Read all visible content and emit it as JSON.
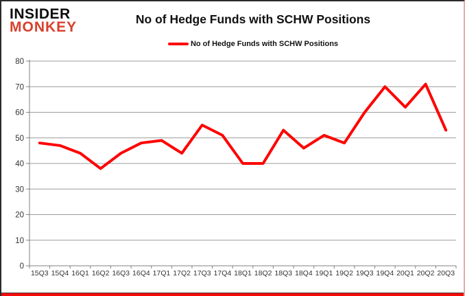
{
  "logo": {
    "line1": "INSIDER",
    "line2": "MONKEY"
  },
  "header": {
    "title": "No of Hedge Funds with SCHW Positions"
  },
  "legend": {
    "label": "No of Hedge Funds with SCHW Positions",
    "color": "#FF0000"
  },
  "chart_data": {
    "type": "line",
    "title": "No of Hedge Funds with SCHW Positions",
    "categories": [
      "15Q3",
      "15Q4",
      "16Q1",
      "16Q2",
      "16Q3",
      "16Q4",
      "17Q1",
      "17Q2",
      "17Q3",
      "17Q4",
      "18Q1",
      "18Q2",
      "18Q3",
      "18Q4",
      "19Q1",
      "19Q2",
      "19Q3",
      "19Q4",
      "20Q1",
      "20Q2",
      "20Q3"
    ],
    "series": [
      {
        "name": "No of Hedge Funds with SCHW Positions",
        "color": "#FF0000",
        "values": [
          48,
          47,
          44,
          38,
          44,
          48,
          49,
          44,
          55,
          51,
          40,
          40,
          53,
          46,
          51,
          48,
          60,
          70,
          62,
          71,
          53
        ]
      }
    ],
    "ylim": [
      0,
      80
    ],
    "yticks": [
      0,
      10,
      20,
      30,
      40,
      50,
      60,
      70,
      80
    ],
    "xlabel": "",
    "ylabel": "",
    "grid": true,
    "legend_position": "top-center"
  },
  "colors": {
    "line": "#FF0000",
    "logo_red": "#D8402C",
    "gridline": "#9C9C9C",
    "axis": "#808080",
    "tick": "#808080",
    "text": "#333333"
  }
}
